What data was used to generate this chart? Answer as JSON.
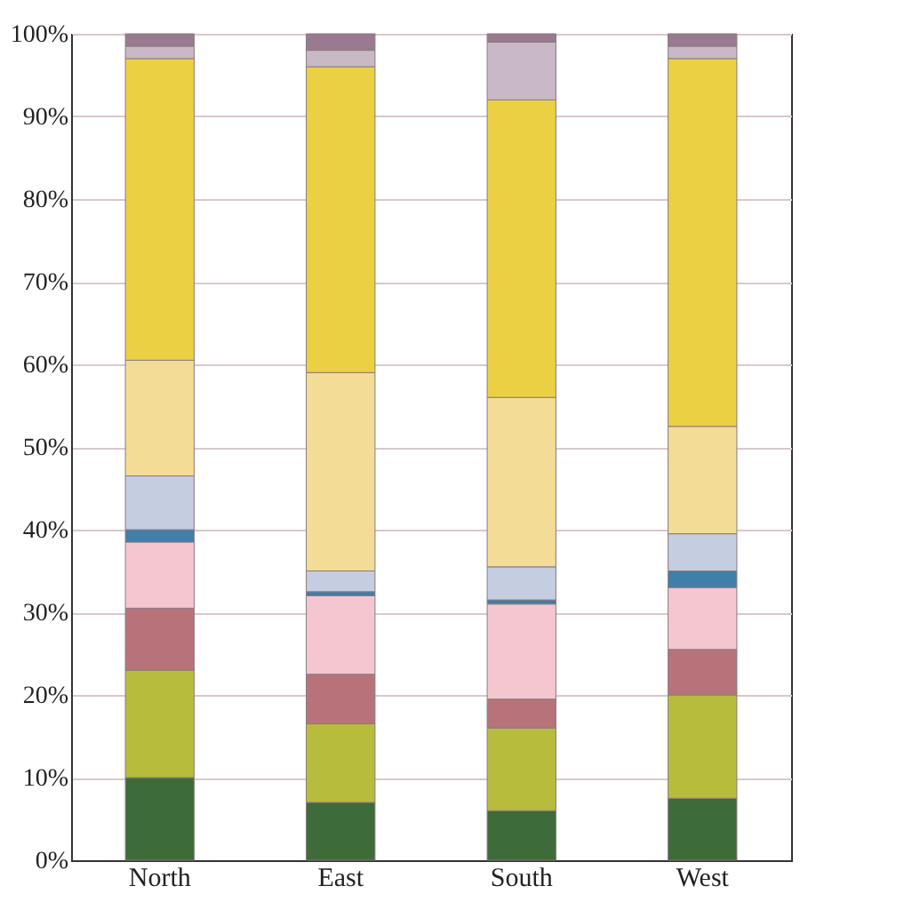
{
  "chart_data": {
    "type": "bar",
    "stacked": true,
    "categories": [
      "North",
      "East",
      "South",
      "West"
    ],
    "series": [
      {
        "color": "#3e6b3a",
        "values": [
          10,
          7,
          6,
          7.5
        ]
      },
      {
        "color": "#b8bc3c",
        "values": [
          13,
          9.5,
          10,
          12.5
        ]
      },
      {
        "color": "#b8737a",
        "values": [
          7.5,
          6,
          3.5,
          5.5
        ]
      },
      {
        "color": "#f4c6cf",
        "values": [
          8,
          9.5,
          11.5,
          7.5
        ]
      },
      {
        "color": "#3f7fa8",
        "values": [
          1.5,
          0.5,
          0.5,
          2
        ]
      },
      {
        "color": "#c5cde0",
        "values": [
          6.5,
          2.5,
          4,
          4.5
        ]
      },
      {
        "color": "#f3dc95",
        "values": [
          14,
          24,
          20.5,
          13
        ]
      },
      {
        "color": "#ecd043",
        "values": [
          36.5,
          37,
          36,
          44.5
        ]
      },
      {
        "color": "#c9b8c5",
        "values": [
          1.5,
          2,
          7,
          1.5
        ]
      },
      {
        "color": "#9a7a8e",
        "values": [
          1.5,
          2,
          1,
          1.5
        ]
      }
    ],
    "ylim": [
      0,
      100
    ],
    "yticks": [
      {
        "value": 0,
        "label": "0%"
      },
      {
        "value": 10,
        "label": "10%"
      },
      {
        "value": 20,
        "label": "20%"
      },
      {
        "value": 30,
        "label": "30%"
      },
      {
        "value": 40,
        "label": "40%"
      },
      {
        "value": 50,
        "label": "50%"
      },
      {
        "value": 60,
        "label": "60%"
      },
      {
        "value": 70,
        "label": "70%"
      },
      {
        "value": 80,
        "label": "80%"
      },
      {
        "value": 90,
        "label": "90%"
      },
      {
        "value": 100,
        "label": "100%"
      }
    ],
    "grid": "y",
    "legend": false
  }
}
